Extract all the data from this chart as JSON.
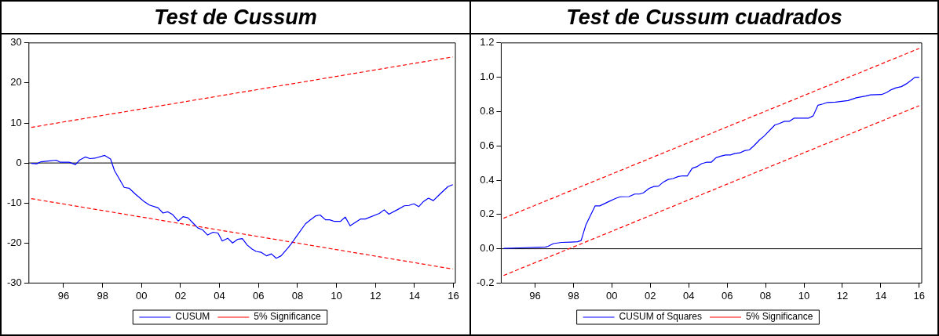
{
  "chart_data": [
    {
      "type": "line",
      "title": "Test de Cussum",
      "xlim": [
        1994.22,
        2016.1
      ],
      "ylim": [
        -30,
        30
      ],
      "yticks": [
        -30,
        -20,
        -10,
        0,
        10,
        20,
        30
      ],
      "xticks": [
        {
          "value": 1996,
          "label": "96"
        },
        {
          "value": 1998,
          "label": "98"
        },
        {
          "value": 2000,
          "label": "00"
        },
        {
          "value": 2002,
          "label": "02"
        },
        {
          "value": 2004,
          "label": "04"
        },
        {
          "value": 2006,
          "label": "06"
        },
        {
          "value": 2008,
          "label": "08"
        },
        {
          "value": 2010,
          "label": "10"
        },
        {
          "value": 2012,
          "label": "12"
        },
        {
          "value": 2014,
          "label": "14"
        },
        {
          "value": 2016,
          "label": "16"
        }
      ],
      "grid": false,
      "legend": "bottom",
      "marker": "none",
      "ref_lines": [
        {
          "axis": "y",
          "value": 0,
          "color": "#000000"
        }
      ],
      "series": [
        {
          "name": "CUSUM",
          "color": "#0000ff",
          "line_style": "solid",
          "x": [
            1994.34,
            1994.62,
            1994.84,
            1995.2,
            1995.62,
            1995.82,
            1996.28,
            1996.61,
            1996.83,
            1997.11,
            1997.36,
            1997.61,
            1998.11,
            1998.41,
            1998.61,
            1999.11,
            1999.36,
            1999.69,
            2000.1,
            2000.4,
            2000.85,
            2001.1,
            2001.35,
            2001.6,
            2001.88,
            2002.13,
            2002.38,
            2002.68,
            2002.88,
            2003.13,
            2003.39,
            2003.67,
            2003.92,
            2004.14,
            2004.42,
            2004.67,
            2004.92,
            2005.17,
            2005.42,
            2005.67,
            2005.88,
            2006.13,
            2006.42,
            2006.66,
            2006.91,
            2007.16,
            2007.5,
            2007.74,
            2007.91,
            2008.41,
            2008.66,
            2008.94,
            2009.16,
            2009.44,
            2009.65,
            2009.9,
            2010.2,
            2010.45,
            2010.7,
            2010.95,
            2011.23,
            2011.48,
            2012.2,
            2012.45,
            2012.69,
            2013.19,
            2013.48,
            2013.72,
            2013.97,
            2014.22,
            2014.47,
            2014.72,
            2014.97,
            2015.3,
            2015.72,
            2015.97
          ],
          "values": [
            -0.1,
            -0.2,
            0.3,
            0.5,
            0.7,
            0.2,
            0.2,
            -0.4,
            0.75,
            1.5,
            1.1,
            1.2,
            1.9,
            1.0,
            -1.9,
            -6.1,
            -6.3,
            -7.8,
            -9.5,
            -10.5,
            -11.2,
            -12.5,
            -12.2,
            -12.9,
            -14.5,
            -13.4,
            -13.7,
            -15.2,
            -16.2,
            -16.7,
            -18.0,
            -17.3,
            -17.5,
            -19.5,
            -18.8,
            -20.0,
            -19.1,
            -18.9,
            -20.5,
            -21.5,
            -22.1,
            -22.3,
            -23.2,
            -22.7,
            -23.8,
            -23.2,
            -21.3,
            -19.8,
            -18.6,
            -15.2,
            -14.2,
            -13.2,
            -13.0,
            -14.2,
            -14.2,
            -14.6,
            -14.6,
            -13.5,
            -15.7,
            -14.9,
            -14.0,
            -14.0,
            -12.6,
            -11.7,
            -12.8,
            -11.5,
            -10.7,
            -10.6,
            -10.2,
            -10.9,
            -9.6,
            -8.8,
            -9.4,
            -7.8,
            -5.9,
            -5.4
          ]
        },
        {
          "name": "5% Significance",
          "color": "#ff0000",
          "line_style": "dashed",
          "x": [
            1994.34,
            2015.97
          ],
          "values": [
            8.9,
            26.5
          ]
        },
        {
          "color": "#ff0000",
          "line_style": "dashed",
          "x": [
            1994.34,
            2015.97
          ],
          "values": [
            -8.9,
            -26.5
          ]
        }
      ]
    },
    {
      "type": "line",
      "title": "Test de Cussum cuadrados",
      "xlim": [
        1994.24,
        2016.13
      ],
      "ylim": [
        -0.2,
        1.2
      ],
      "yticks": [
        {
          "value": -0.2,
          "label": "-0.2"
        },
        {
          "value": 0,
          "label": "0.0"
        },
        {
          "value": 0.2,
          "label": "0.2"
        },
        {
          "value": 0.4,
          "label": "0.4"
        },
        {
          "value": 0.6,
          "label": "0.6"
        },
        {
          "value": 0.8,
          "label": "0.8"
        },
        {
          "value": 1,
          "label": "1.0"
        },
        {
          "value": 1.2,
          "label": "1.2"
        }
      ],
      "xticks": [
        {
          "value": 1996,
          "label": "96"
        },
        {
          "value": 1998,
          "label": "98"
        },
        {
          "value": 2000,
          "label": "00"
        },
        {
          "value": 2002,
          "label": "02"
        },
        {
          "value": 2004,
          "label": "04"
        },
        {
          "value": 2006,
          "label": "06"
        },
        {
          "value": 2008,
          "label": "08"
        },
        {
          "value": 2010,
          "label": "10"
        },
        {
          "value": 2012,
          "label": "12"
        },
        {
          "value": 2014,
          "label": "14"
        },
        {
          "value": 2016,
          "label": "16"
        }
      ],
      "grid": false,
      "legend": "bottom",
      "marker": "none",
      "ref_lines": [
        {
          "axis": "y",
          "value": 0,
          "color": "#000000"
        }
      ],
      "series": [
        {
          "name": "CUSUM of Squares",
          "color": "#0000ff",
          "line_style": "solid",
          "x": [
            1994.36,
            1995.22,
            1996.22,
            1996.55,
            1996.68,
            1996.96,
            1997.38,
            1997.87,
            1998.21,
            1998.4,
            1998.65,
            1999.13,
            1999.37,
            1999.86,
            2000.2,
            2000.44,
            2000.89,
            2001.19,
            2001.44,
            2001.64,
            2001.94,
            2002.19,
            2002.43,
            2002.68,
            2002.93,
            2003.18,
            2003.46,
            2003.68,
            2003.93,
            2004.18,
            2004.42,
            2004.67,
            2004.92,
            2005.17,
            2005.42,
            2005.67,
            2005.92,
            2006.17,
            2006.41,
            2006.66,
            2006.91,
            2007.16,
            2007.41,
            2007.69,
            2007.91,
            2008.49,
            2008.74,
            2008.99,
            2009.23,
            2009.48,
            2010.23,
            2010.48,
            2010.73,
            2010.98,
            2011.22,
            2011.64,
            2012.3,
            2012.72,
            2013.21,
            2013.46,
            2014.04,
            2014.29,
            2014.54,
            2014.79,
            2015.07,
            2015.32,
            2015.54,
            2015.78,
            2016.0
          ],
          "values": [
            0.002,
            0.005,
            0.009,
            0.01,
            0.014,
            0.03,
            0.037,
            0.039,
            0.041,
            0.048,
            0.14,
            0.25,
            0.25,
            0.276,
            0.294,
            0.303,
            0.304,
            0.319,
            0.319,
            0.326,
            0.352,
            0.363,
            0.365,
            0.389,
            0.404,
            0.409,
            0.421,
            0.425,
            0.425,
            0.469,
            0.478,
            0.496,
            0.504,
            0.504,
            0.531,
            0.54,
            0.547,
            0.547,
            0.556,
            0.559,
            0.572,
            0.577,
            0.602,
            0.635,
            0.655,
            0.722,
            0.731,
            0.743,
            0.743,
            0.761,
            0.761,
            0.775,
            0.837,
            0.844,
            0.853,
            0.855,
            0.864,
            0.88,
            0.89,
            0.897,
            0.899,
            0.91,
            0.927,
            0.938,
            0.945,
            0.961,
            0.979,
            1.0,
            1.0
          ]
        },
        {
          "name": "5% Significance",
          "color": "#ff0000",
          "line_style": "dashed",
          "x": [
            1994.36,
            2016.0
          ],
          "values": [
            0.178,
            1.168
          ]
        },
        {
          "color": "#ff0000",
          "line_style": "dashed",
          "x": [
            1994.36,
            2016.0
          ],
          "values": [
            -0.156,
            0.834
          ]
        }
      ]
    }
  ]
}
